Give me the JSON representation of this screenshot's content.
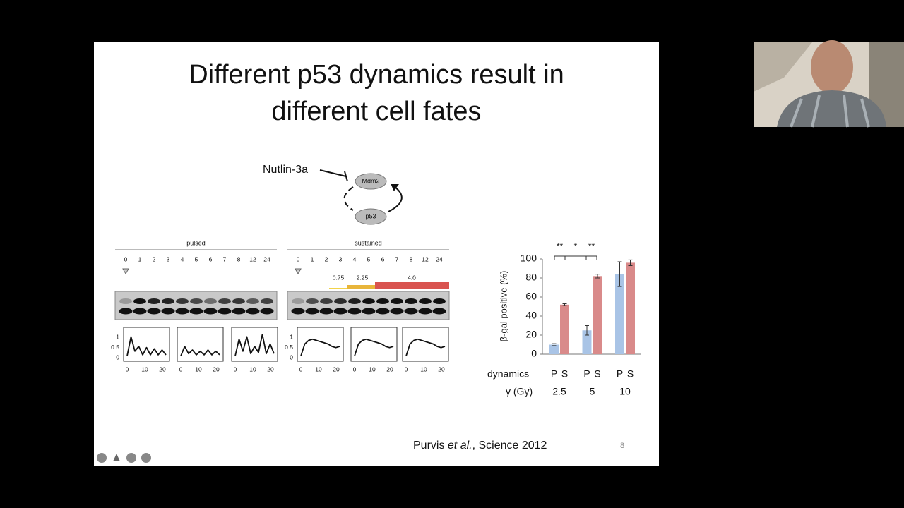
{
  "slide": {
    "title_lines": [
      "Different p53 dynamics result in",
      "different cell fates"
    ],
    "citation": {
      "author": "Purvis ",
      "etal": "et al.",
      "rest": ", Science 2012"
    },
    "page_number": "8"
  },
  "diagram": {
    "drug": "Nutlin-3a",
    "top_node": "Mdm2",
    "bottom_node": "p53"
  },
  "blot": {
    "pulsed": {
      "label": "pulsed",
      "times": [
        "0",
        "1",
        "2",
        "3",
        "4",
        "5",
        "6",
        "7",
        "8",
        "12",
        "24"
      ]
    },
    "sustained": {
      "label": "sustained",
      "times": [
        "0",
        "1",
        "2",
        "3",
        "4",
        "5",
        "6",
        "7",
        "8",
        "12",
        "24"
      ],
      "doses": [
        "0.75",
        "2.25",
        "4.0"
      ]
    },
    "trace_yticks": [
      "1",
      "0.5",
      "0"
    ],
    "trace_xticks": [
      "0",
      "10",
      "20"
    ]
  },
  "bar_chart": {
    "type": "bar",
    "ylabel": "β-gal positive (%)",
    "ylim": [
      0,
      100
    ],
    "yticks": [
      0,
      20,
      40,
      60,
      80,
      100
    ],
    "row_labels": [
      "dynamics",
      "γ (Gy)"
    ],
    "categories": [
      "2.5",
      "5",
      "10"
    ],
    "series": [
      {
        "name": "P",
        "color": "#a9c4e6",
        "values": [
          10,
          25,
          84
        ],
        "errors": [
          1,
          5,
          13
        ]
      },
      {
        "name": "S",
        "color": "#d98a8a",
        "values": [
          52,
          82,
          96
        ],
        "errors": [
          1,
          2,
          3
        ]
      }
    ],
    "significance": [
      "**",
      "*",
      "**"
    ]
  }
}
